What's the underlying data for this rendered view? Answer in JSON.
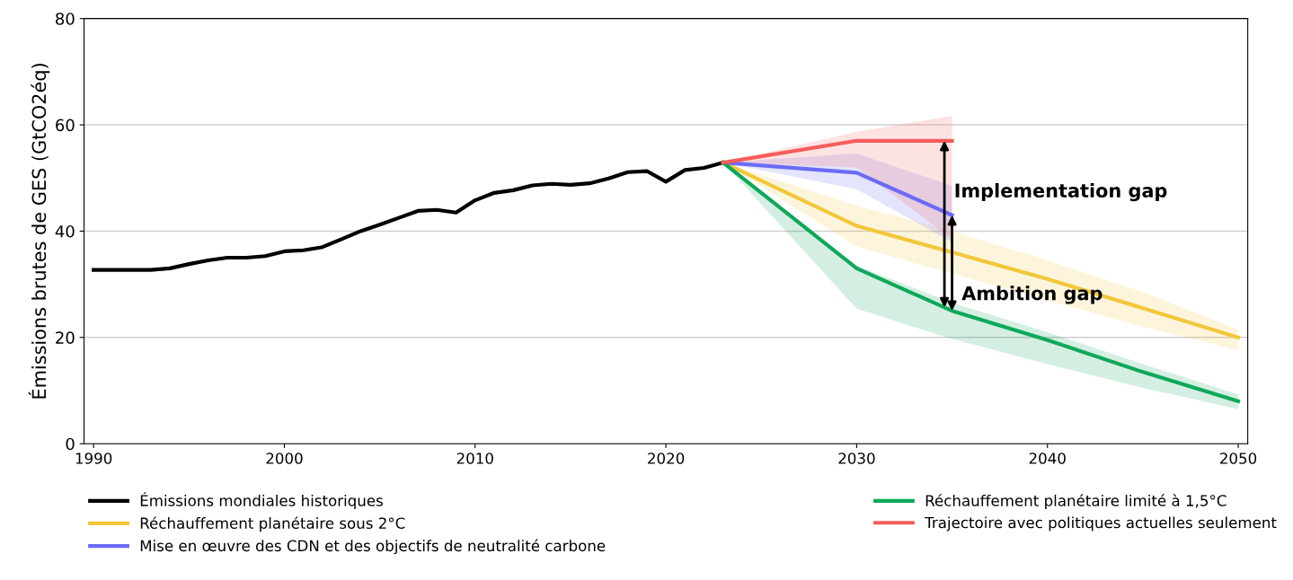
{
  "chart_data": {
    "type": "line",
    "ylabel": "Émissions brutes de GES (GtCO2éq)",
    "xlim": [
      1989.5,
      2050.5
    ],
    "xticks": [
      1990,
      2000,
      2010,
      2020,
      2030,
      2040,
      2050
    ],
    "ylim": [
      0,
      80
    ],
    "yticks": [
      0,
      20,
      40,
      60,
      80
    ],
    "grid": "y",
    "legend": "bottom",
    "marker": "none",
    "line_style": "solid",
    "series": [
      {
        "name": "Émissions mondiales historiques",
        "color": "#000000",
        "x": [
          1990,
          1991,
          1992,
          1993,
          1994,
          1995,
          1996,
          1997,
          1998,
          1999,
          2000,
          2001,
          2002,
          2003,
          2004,
          2005,
          2006,
          2007,
          2008,
          2009,
          2010,
          2011,
          2012,
          2013,
          2014,
          2015,
          2016,
          2017,
          2018,
          2019,
          2020,
          2021,
          2022,
          2023
        ],
        "values": [
          32.7,
          32.7,
          32.7,
          32.7,
          33,
          33.8,
          34.5,
          35,
          35,
          35.3,
          36.2,
          36.4,
          37,
          38.5,
          40,
          41.2,
          42.5,
          43.8,
          44,
          43.5,
          45.8,
          47.2,
          47.7,
          48.6,
          48.9,
          48.7,
          49,
          49.9,
          51.1,
          51.3,
          49.3,
          51.5,
          51.9,
          52.9
        ]
      },
      {
        "name": "Réchauffement planétaire sous 2°C",
        "color": "#f2c73a",
        "x": [
          2023,
          2030,
          2035,
          2040,
          2045,
          2050
        ],
        "values": [
          52.9,
          41,
          36,
          31,
          25.5,
          20
        ],
        "lower": [
          52.9,
          37.1,
          32,
          27,
          22,
          17.6
        ],
        "upper": [
          52.9,
          44.8,
          40,
          34.5,
          28.5,
          21.5
        ]
      },
      {
        "name": "Mise en œuvre des CDN et des objectifs de neutralité carbone",
        "color": "#6b6bf5",
        "x": [
          2023,
          2030,
          2035
        ],
        "values": [
          52.9,
          51,
          43
        ],
        "lower": [
          52.9,
          47.9,
          37.9
        ],
        "upper": [
          52.9,
          54.6,
          48.5
        ]
      },
      {
        "name": "Réchauffement planétaire limité à 1,5°C",
        "color": "#0fa85a",
        "x": [
          2023,
          2030,
          2035,
          2040,
          2045,
          2050
        ],
        "values": [
          52.9,
          33,
          25,
          19.5,
          13.5,
          8
        ],
        "lower": [
          52.9,
          25.4,
          19.7,
          15,
          10.5,
          6.5
        ],
        "upper": [
          52.9,
          33.5,
          26.5,
          21,
          15,
          9.3
        ]
      },
      {
        "name": "Trajectoire avec politiques actuelles seulement",
        "color": "#f65c5c",
        "x": [
          2023,
          2030,
          2035
        ],
        "values": [
          52.9,
          57,
          57
        ],
        "lower": [
          52.9,
          52,
          38.5
        ],
        "upper": [
          52.9,
          58.7,
          61.7
        ]
      }
    ],
    "annotations": [
      {
        "text": "Implementation gap",
        "x": 2034.6,
        "y": 57
      },
      {
        "text": "Ambition gap",
        "x": 2035,
        "y": 43
      }
    ]
  }
}
